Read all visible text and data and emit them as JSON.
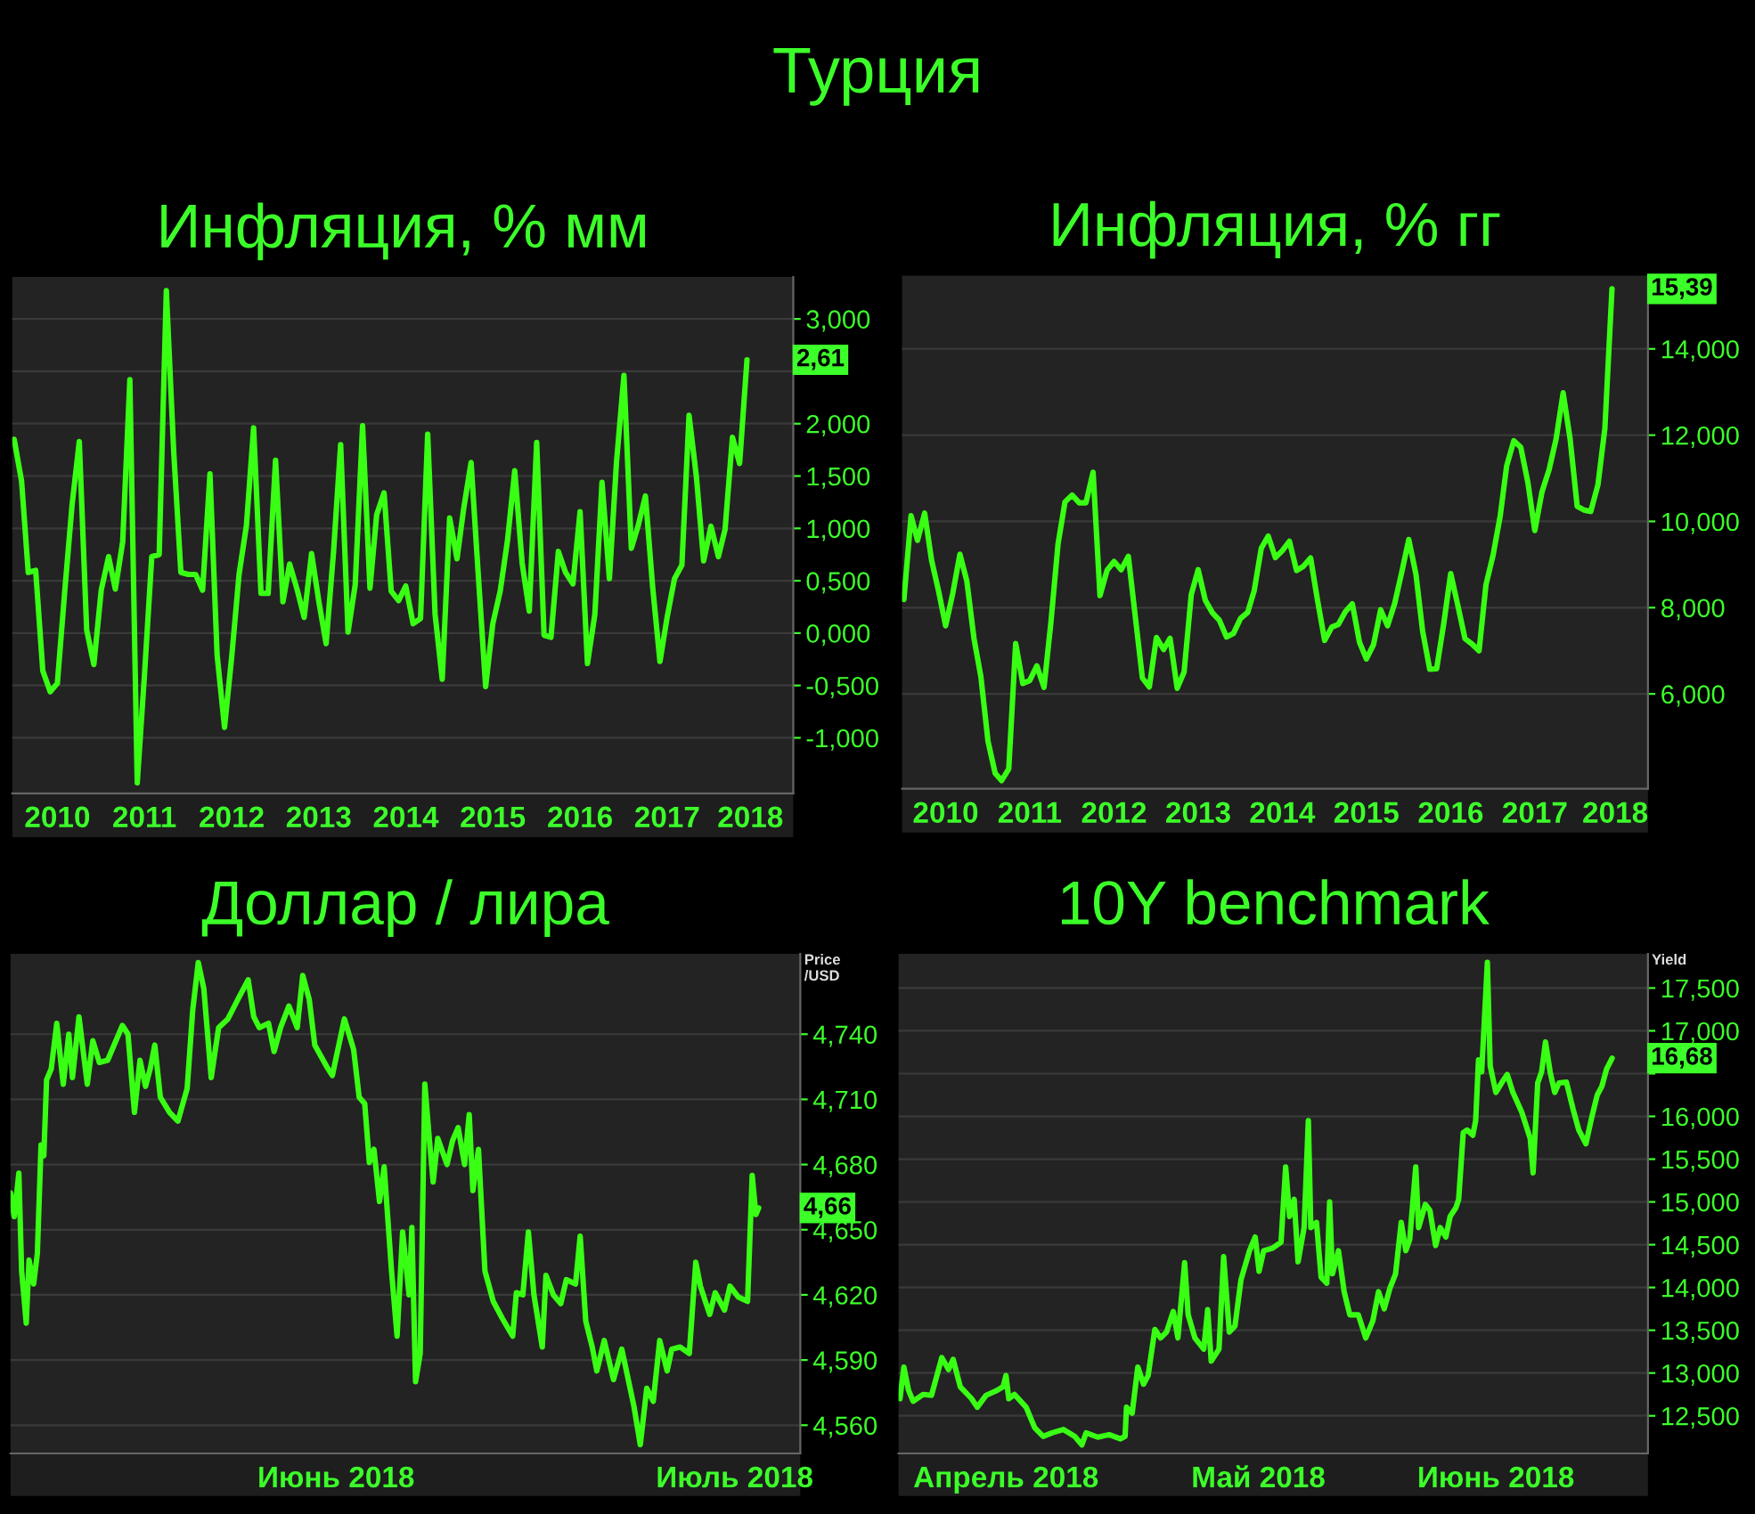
{
  "chart_data": [
    {
      "type": "line",
      "title": "Инфляция, % мм",
      "annotations": [
        "Турция",
        {
          "text": "2,61",
          "x": "2018-06",
          "y": 2.61
        }
      ],
      "x": [
        "2010-01",
        "2010-02",
        "2010-03",
        "2010-04",
        "2010-05",
        "2010-06",
        "2010-07",
        "2010-08",
        "2010-09",
        "2010-10",
        "2010-11",
        "2010-12",
        "2011-01",
        "2011-02",
        "2011-03",
        "2011-04",
        "2011-05",
        "2011-06",
        "2011-07",
        "2011-08",
        "2011-09",
        "2011-10",
        "2011-11",
        "2011-12",
        "2012-01",
        "2012-02",
        "2012-03",
        "2012-04",
        "2012-05",
        "2012-06",
        "2012-07",
        "2012-08",
        "2012-09",
        "2012-10",
        "2012-11",
        "2012-12",
        "2013-01",
        "2013-02",
        "2013-03",
        "2013-04",
        "2013-05",
        "2013-06",
        "2013-07",
        "2013-08",
        "2013-09",
        "2013-10",
        "2013-11",
        "2013-12",
        "2014-01",
        "2014-02",
        "2014-03",
        "2014-04",
        "2014-05",
        "2014-06",
        "2014-07",
        "2014-08",
        "2014-09",
        "2014-10",
        "2014-11",
        "2014-12",
        "2015-01",
        "2015-02",
        "2015-03",
        "2015-04",
        "2015-05",
        "2015-06",
        "2015-07",
        "2015-08",
        "2015-09",
        "2015-10",
        "2015-11",
        "2015-12",
        "2016-01",
        "2016-02",
        "2016-03",
        "2016-04",
        "2016-05",
        "2016-06",
        "2016-07",
        "2016-08",
        "2016-09",
        "2016-10",
        "2016-11",
        "2016-12",
        "2017-01",
        "2017-02",
        "2017-03",
        "2017-04",
        "2017-05",
        "2017-06",
        "2017-07",
        "2017-08",
        "2017-09",
        "2017-10",
        "2017-11",
        "2017-12",
        "2018-01",
        "2018-02",
        "2018-03",
        "2018-04",
        "2018-05",
        "2018-06"
      ],
      "series": [
        {
          "color": "#39ff14",
          "values": [
            1.85,
            1.45,
            0.58,
            0.6,
            -0.36,
            -0.56,
            -0.48,
            0.4,
            1.23,
            1.83,
            0.03,
            -0.3,
            0.41,
            0.73,
            0.42,
            0.87,
            2.42,
            -1.43,
            -0.41,
            0.73,
            0.75,
            3.27,
            1.73,
            0.58,
            0.56,
            0.56,
            0.41,
            1.52,
            -0.21,
            -0.9,
            -0.23,
            0.56,
            1.03,
            1.96,
            0.38,
            0.38,
            1.65,
            0.3,
            0.66,
            0.42,
            0.15,
            0.76,
            0.31,
            -0.1,
            0.77,
            1.8,
            0.01,
            0.46,
            1.98,
            0.43,
            1.13,
            1.34,
            0.4,
            0.31,
            0.45,
            0.09,
            0.14,
            1.9,
            0.18,
            -0.44,
            1.1,
            0.71,
            1.19,
            1.63,
            0.56,
            -0.51,
            0.09,
            0.4,
            0.89,
            1.55,
            0.67,
            0.21,
            1.82,
            -0.02,
            -0.04,
            0.78,
            0.58,
            0.47,
            1.16,
            -0.29,
            0.18,
            1.44,
            0.52,
            1.64,
            2.46,
            0.81,
            1.02,
            1.31,
            0.45,
            -0.27,
            0.15,
            0.52,
            0.65,
            2.08,
            1.49,
            0.69,
            1.02,
            0.73,
            0.99,
            1.87,
            1.62,
            2.61
          ]
        }
      ],
      "xlim": [
        "2009-12-24",
        "2018-12-12"
      ],
      "xticks": [
        {
          "value": "2010-07-01",
          "label": "2010"
        },
        {
          "value": "2011-07-01",
          "label": "2011"
        },
        {
          "value": "2012-07-01",
          "label": "2012"
        },
        {
          "value": "2013-07-01",
          "label": "2013"
        },
        {
          "value": "2014-07-01",
          "label": "2014"
        },
        {
          "value": "2015-07-01",
          "label": "2015"
        },
        {
          "value": "2016-07-01",
          "label": "2016"
        },
        {
          "value": "2017-07-01",
          "label": "2017"
        },
        {
          "value": "2018-06-15",
          "label": "2018"
        }
      ],
      "ylim": [
        -1.53,
        3.4
      ],
      "yticks": [
        {
          "value": -1,
          "label": "-1,000"
        },
        {
          "value": -0.5,
          "label": "-0,500"
        },
        {
          "value": 0,
          "label": "0,000"
        },
        {
          "value": 0.5,
          "label": "0,500"
        },
        {
          "value": 1,
          "label": "1,000"
        },
        {
          "value": 1.5,
          "label": "1,500"
        },
        {
          "value": 2,
          "label": "2,000"
        },
        {
          "value": 2.5,
          "label": null
        },
        {
          "value": 3,
          "label": "3,000"
        }
      ],
      "grid": "y"
    },
    {
      "type": "line",
      "title": "Инфляция, % гг",
      "annotations": [
        {
          "text": "15,39",
          "x": "2018-06",
          "y": 15.39
        }
      ],
      "x": [
        "2010-01",
        "2010-02",
        "2010-03",
        "2010-04",
        "2010-05",
        "2010-06",
        "2010-07",
        "2010-08",
        "2010-09",
        "2010-10",
        "2010-11",
        "2010-12",
        "2011-01",
        "2011-02",
        "2011-03",
        "2011-04",
        "2011-05",
        "2011-06",
        "2011-07",
        "2011-08",
        "2011-09",
        "2011-10",
        "2011-11",
        "2011-12",
        "2012-01",
        "2012-02",
        "2012-03",
        "2012-04",
        "2012-05",
        "2012-06",
        "2012-07",
        "2012-08",
        "2012-09",
        "2012-10",
        "2012-11",
        "2012-12",
        "2013-01",
        "2013-02",
        "2013-03",
        "2013-04",
        "2013-05",
        "2013-06",
        "2013-07",
        "2013-08",
        "2013-09",
        "2013-10",
        "2013-11",
        "2013-12",
        "2014-01",
        "2014-02",
        "2014-03",
        "2014-04",
        "2014-05",
        "2014-06",
        "2014-07",
        "2014-08",
        "2014-09",
        "2014-10",
        "2014-11",
        "2014-12",
        "2015-01",
        "2015-02",
        "2015-03",
        "2015-04",
        "2015-05",
        "2015-06",
        "2015-07",
        "2015-08",
        "2015-09",
        "2015-10",
        "2015-11",
        "2015-12",
        "2016-01",
        "2016-02",
        "2016-03",
        "2016-04",
        "2016-05",
        "2016-06",
        "2016-07",
        "2016-08",
        "2016-09",
        "2016-10",
        "2016-11",
        "2016-12",
        "2017-01",
        "2017-02",
        "2017-03",
        "2017-04",
        "2017-05",
        "2017-06",
        "2017-07",
        "2017-08",
        "2017-09",
        "2017-10",
        "2017-11",
        "2017-12",
        "2018-01",
        "2018-02",
        "2018-03",
        "2018-04",
        "2018-05",
        "2018-06"
      ],
      "series": [
        {
          "color": "#39ff14",
          "values": [
            8.19,
            10.13,
            9.56,
            10.19,
            9.1,
            8.37,
            7.58,
            8.33,
            9.24,
            8.62,
            7.29,
            6.4,
            4.9,
            4.16,
            3.99,
            4.26,
            7.17,
            6.24,
            6.31,
            6.65,
            6.15,
            7.66,
            9.48,
            10.45,
            10.61,
            10.43,
            10.43,
            11.14,
            8.28,
            8.87,
            9.07,
            8.88,
            9.19,
            7.8,
            6.37,
            6.16,
            7.31,
            7.03,
            7.29,
            6.13,
            6.51,
            8.3,
            8.88,
            8.17,
            7.88,
            7.71,
            7.32,
            7.4,
            7.75,
            7.89,
            8.39,
            9.38,
            9.66,
            9.16,
            9.32,
            9.54,
            8.86,
            8.96,
            9.15,
            8.17,
            7.24,
            7.55,
            7.61,
            7.91,
            8.09,
            7.2,
            6.81,
            7.14,
            7.95,
            7.58,
            8.1,
            8.81,
            9.58,
            8.78,
            7.46,
            6.57,
            6.58,
            7.64,
            8.79,
            8.05,
            7.28,
            7.16,
            7.0,
            8.53,
            9.22,
            10.13,
            11.29,
            11.87,
            11.72,
            10.9,
            9.79,
            10.68,
            11.2,
            11.9,
            12.98,
            11.92,
            10.35,
            10.26,
            10.23,
            10.85,
            12.15,
            15.39
          ]
        }
      ],
      "xlim": [
        "2009-12-24",
        "2018-11-04"
      ],
      "xticks": [
        {
          "value": "2010-07-01",
          "label": "2010"
        },
        {
          "value": "2011-07-01",
          "label": "2011"
        },
        {
          "value": "2012-07-01",
          "label": "2012"
        },
        {
          "value": "2013-07-01",
          "label": "2013"
        },
        {
          "value": "2014-07-01",
          "label": "2014"
        },
        {
          "value": "2015-07-01",
          "label": "2015"
        },
        {
          "value": "2016-07-01",
          "label": "2016"
        },
        {
          "value": "2017-07-01",
          "label": "2017"
        },
        {
          "value": "2018-06-15",
          "label": "2018"
        }
      ],
      "ylim": [
        3.8,
        15.7
      ],
      "yticks": [
        {
          "value": 6,
          "label": "6,000"
        },
        {
          "value": 8,
          "label": "8,000"
        },
        {
          "value": 10,
          "label": "10,000"
        },
        {
          "value": 12,
          "label": "12,000"
        },
        {
          "value": 14,
          "label": "14,000"
        }
      ],
      "grid": "y"
    },
    {
      "type": "line",
      "title": "Доллар / лира",
      "ylabel": "Price\n/USD",
      "annotations": [
        {
          "text": "4,66",
          "x": "2018-07-05T01:00",
          "y": 4.66
        }
      ],
      "x": [
        "2018-06-01T08:00",
        "2018-06-01T12:00",
        "2018-06-01T17:00",
        "2018-06-01T20:00",
        "2018-06-02T01:00",
        "2018-06-02T04:00",
        "2018-06-02T09:00",
        "2018-06-02T13:00",
        "2018-06-02T17:00",
        "2018-06-02T20:00",
        "2018-06-02T23:00",
        "2018-06-03T04:00",
        "2018-06-03T10:00",
        "2018-06-03T17:00",
        "2018-06-03T23:00",
        "2018-06-04T03:00",
        "2018-06-04T10:00",
        "2018-06-04T19:00",
        "2018-06-05T01:00",
        "2018-06-05T08:00",
        "2018-06-05T17:00",
        "2018-06-06T09:00",
        "2018-06-06T15:00",
        "2018-06-06T22:00",
        "2018-06-07T04:00",
        "2018-06-07T10:00",
        "2018-06-07T15:00",
        "2018-06-07T20:00",
        "2018-06-08T02:00",
        "2018-06-08T12:00",
        "2018-06-08T21:00",
        "2018-06-09T07:00",
        "2018-06-09T13:00",
        "2018-06-09T19:00",
        "2018-06-10T01:00",
        "2018-06-10T09:00",
        "2018-06-10T17:00",
        "2018-06-11T03:00",
        "2018-06-11T15:00",
        "2018-06-12T01:00",
        "2018-06-12T07:00",
        "2018-06-12T13:00",
        "2018-06-12T23:00",
        "2018-06-13T05:00",
        "2018-06-13T12:00",
        "2018-06-13T21:00",
        "2018-06-14T06:00",
        "2018-06-14T12:00",
        "2018-06-14T19:00",
        "2018-06-15T01:00",
        "2018-06-15T14:00",
        "2018-06-15T20:00",
        "2018-06-16T09:00",
        "2018-06-16T19:00",
        "2018-06-17T01:00",
        "2018-06-17T07:00",
        "2018-06-17T12:00",
        "2018-06-17T17:00",
        "2018-06-17T23:00",
        "2018-06-18T04:00",
        "2018-06-18T12:00",
        "2018-06-18T18:00",
        "2018-06-19T00:00",
        "2018-06-19T07:00",
        "2018-06-19T10:00",
        "2018-06-19T14:00",
        "2018-06-19T19:00",
        "2018-06-20T00:00",
        "2018-06-20T05:00",
        "2018-06-20T09:00",
        "2018-06-20T14:00",
        "2018-06-21T00:00",
        "2018-06-21T06:00",
        "2018-06-21T12:00",
        "2018-06-21T19:00",
        "2018-06-22T00:00",
        "2018-06-22T04:00",
        "2018-06-22T10:00",
        "2018-06-22T17:00",
        "2018-06-23T02:00",
        "2018-06-23T12:00",
        "2018-06-23T23:00",
        "2018-06-24T03:00",
        "2018-06-24T10:00",
        "2018-06-24T16:00",
        "2018-06-24T22:00",
        "2018-06-25T07:00",
        "2018-06-25T11:00",
        "2018-06-25T19:00",
        "2018-06-26T03:00",
        "2018-06-26T09:00",
        "2018-06-26T19:00",
        "2018-06-27T00:00",
        "2018-06-27T06:00",
        "2018-06-27T13:00",
        "2018-06-27T18:00",
        "2018-06-28T02:00",
        "2018-06-28T12:00",
        "2018-06-28T21:00",
        "2018-06-29T10:00",
        "2018-06-29T17:00",
        "2018-06-30T00:00",
        "2018-06-30T07:00",
        "2018-06-30T14:00",
        "2018-06-30T22:00",
        "2018-07-01T03:00",
        "2018-07-01T12:00",
        "2018-07-01T22:00",
        "2018-07-02T05:00",
        "2018-07-02T10:00",
        "2018-07-02T20:00",
        "2018-07-03T02:00",
        "2018-07-03T12:00",
        "2018-07-03T18:00",
        "2018-07-04T03:00",
        "2018-07-04T13:00",
        "2018-07-04T18:00",
        "2018-07-04T22:00",
        "2018-07-05T01:00"
      ],
      "series": [
        {
          "color": "#39ff14",
          "values": [
            4.667,
            4.656,
            4.676,
            4.631,
            4.607,
            4.636,
            4.625,
            4.639,
            4.689,
            4.684,
            4.719,
            4.724,
            4.745,
            4.717,
            4.74,
            4.72,
            4.748,
            4.717,
            4.737,
            4.727,
            4.728,
            4.744,
            4.74,
            4.704,
            4.728,
            4.716,
            4.724,
            4.735,
            4.711,
            4.704,
            4.7,
            4.715,
            4.751,
            4.773,
            4.761,
            4.72,
            4.743,
            4.747,
            4.757,
            4.765,
            4.748,
            4.743,
            4.745,
            4.732,
            4.743,
            4.753,
            4.743,
            4.767,
            4.756,
            4.735,
            4.725,
            4.721,
            4.747,
            4.733,
            4.711,
            4.708,
            4.681,
            4.687,
            4.663,
            4.679,
            4.631,
            4.601,
            4.649,
            4.62,
            4.651,
            4.58,
            4.593,
            4.717,
            4.691,
            4.672,
            4.692,
            4.68,
            4.691,
            4.697,
            4.68,
            4.703,
            4.668,
            4.687,
            4.631,
            4.617,
            4.609,
            4.601,
            4.621,
            4.62,
            4.649,
            4.62,
            4.596,
            4.629,
            4.62,
            4.616,
            4.627,
            4.625,
            4.647,
            4.608,
            4.596,
            4.585,
            4.599,
            4.581,
            4.595,
            4.569,
            4.551,
            4.577,
            4.571,
            4.599,
            4.585,
            4.595,
            4.596,
            4.593,
            4.635,
            4.624,
            4.611,
            4.621,
            4.613,
            4.624,
            4.619,
            4.617,
            4.675,
            4.657,
            4.66
          ]
        }
      ],
      "xlim": [
        "2018-06-01T08:00",
        "2018-07-06T22:00"
      ],
      "xticks": [
        {
          "value": "2018-06-16",
          "label": "Июнь 2018"
        },
        {
          "value": "2018-07-03T23:00",
          "label": "Июль 2018"
        }
      ],
      "ylim": [
        4.547,
        4.777
      ],
      "yticks": [
        {
          "value": 4.56,
          "label": "4,560"
        },
        {
          "value": 4.59,
          "label": "4,590"
        },
        {
          "value": 4.62,
          "label": "4,620"
        },
        {
          "value": 4.65,
          "label": "4,650"
        },
        {
          "value": 4.68,
          "label": "4,680"
        },
        {
          "value": 4.71,
          "label": "4,710"
        },
        {
          "value": 4.74,
          "label": "4,740"
        }
      ],
      "grid": "y"
    },
    {
      "type": "line",
      "title": "10Y benchmark",
      "ylabel": "Yield",
      "annotations": [
        {
          "text": "16,68",
          "x": "2018-06-27T02:00",
          "y": 16.68
        }
      ],
      "x": [
        "2018-04-04T09:00",
        "2018-04-04T20:00",
        "2018-04-05T09:00",
        "2018-04-05T22:00",
        "2018-04-07T02:00",
        "2018-04-08T02:00",
        "2018-04-09T07:00",
        "2018-04-10T02:00",
        "2018-04-10T15:00",
        "2018-04-11T11:00",
        "2018-04-12T19:00",
        "2018-04-13T11:00",
        "2018-04-14T12:00",
        "2018-04-15T20:00",
        "2018-04-16T12:00",
        "2018-04-16T20:00",
        "2018-04-17T04:00",
        "2018-04-17T20:00",
        "2018-04-19T05:00",
        "2018-04-20T05:00",
        "2018-04-21T05:00",
        "2018-04-22T06:00",
        "2018-04-23T14:00",
        "2018-04-24T22:00",
        "2018-04-25T18:00",
        "2018-04-26T06:00",
        "2018-04-27T15:00",
        "2018-04-28T23:00",
        "2018-04-30T07:00",
        "2018-04-30T20:00",
        "2018-05-01T00:00",
        "2018-05-01T16:00",
        "2018-05-02T08:00",
        "2018-05-03T00:00",
        "2018-05-03T13:00",
        "2018-05-04T08:00",
        "2018-05-05T00:00",
        "2018-05-05T17:00",
        "2018-05-06T12:00",
        "2018-05-07T01:00",
        "2018-05-07T20:00",
        "2018-05-08T06:00",
        "2018-05-09T01:00",
        "2018-05-10T02:00",
        "2018-05-10T13:00",
        "2018-05-10T23:00",
        "2018-05-11T21:00",
        "2018-05-12T10:00",
        "2018-05-13T02:00",
        "2018-05-13T18:00",
        "2018-05-14T11:00",
        "2018-05-15T11:00",
        "2018-05-16T03:00",
        "2018-05-16T14:00",
        "2018-05-17T03:00",
        "2018-05-18T04:00",
        "2018-05-19T04:00",
        "2018-05-19T17:00",
        "2018-05-20T04:00",
        "2018-05-20T17:00",
        "2018-05-21T04:00",
        "2018-05-21T21:00",
        "2018-05-22T09:00",
        "2018-05-22T16:00",
        "2018-05-23T08:00",
        "2018-05-23T21:00",
        "2018-05-24T13:00",
        "2018-05-24T21:00",
        "2018-05-25T05:00",
        "2018-05-25T22:00",
        "2018-05-26T14:00",
        "2018-05-27T06:00",
        "2018-05-28T06:00",
        "2018-05-29T03:00",
        "2018-05-29T23:00",
        "2018-05-30T15:00",
        "2018-05-31T07:00",
        "2018-05-31T23:00",
        "2018-06-01T15:00",
        "2018-06-02T07:00",
        "2018-06-02T20:00",
        "2018-06-03T07:00",
        "2018-06-04T00:00",
        "2018-06-04T08:00",
        "2018-06-05T03:00",
        "2018-06-05T16:00",
        "2018-06-06T08:00",
        "2018-06-06T21:00",
        "2018-06-07T13:00",
        "2018-06-08T01:00",
        "2018-06-08T17:00",
        "2018-06-09T01:00",
        "2018-06-09T14:00",
        "2018-06-10T01:00",
        "2018-06-10T17:00",
        "2018-06-11T01:00",
        "2018-06-11T09:00",
        "2018-06-11T18:00",
        "2018-06-12T02:00",
        "2018-06-12T10:00",
        "2018-06-12T18:00",
        "2018-06-13T10:00",
        "2018-06-14T02:00",
        "2018-06-14T18:00",
        "2018-06-15T10:00",
        "2018-06-16T11:00",
        "2018-06-17T11:00",
        "2018-06-17T19:00",
        "2018-06-18T08:00",
        "2018-06-18T19:00",
        "2018-06-19T06:00",
        "2018-06-19T19:00",
        "2018-06-20T08:00",
        "2018-06-20T20:00",
        "2018-06-21T17:00",
        "2018-06-22T12:00",
        "2018-06-23T04:00",
        "2018-06-24T00:00",
        "2018-06-24T16:00",
        "2018-06-25T08:00",
        "2018-06-25T21:00",
        "2018-06-26T10:00",
        "2018-06-27T02:00"
      ],
      "series": [
        {
          "color": "#39ff14",
          "values": [
            12.7,
            13.07,
            12.8,
            12.67,
            12.75,
            12.74,
            13.18,
            13.04,
            13.16,
            12.84,
            12.7,
            12.6,
            12.74,
            12.8,
            12.84,
            12.97,
            12.7,
            12.75,
            12.6,
            12.36,
            12.26,
            12.3,
            12.34,
            12.26,
            12.16,
            12.3,
            12.25,
            12.28,
            12.23,
            12.26,
            12.6,
            12.53,
            13.07,
            12.87,
            12.97,
            13.51,
            13.41,
            13.48,
            13.72,
            13.41,
            14.29,
            13.68,
            13.41,
            13.28,
            13.74,
            13.14,
            13.28,
            14.36,
            13.48,
            13.55,
            14.09,
            14.43,
            14.59,
            14.19,
            14.43,
            14.46,
            14.53,
            15.41,
            14.83,
            15.03,
            14.3,
            14.7,
            15.95,
            14.7,
            14.76,
            14.12,
            14.05,
            15.0,
            14.16,
            14.43,
            13.95,
            13.68,
            13.68,
            13.41,
            13.61,
            13.95,
            13.75,
            13.99,
            14.16,
            14.76,
            14.43,
            14.56,
            15.41,
            14.7,
            14.97,
            14.9,
            14.49,
            14.7,
            14.59,
            14.83,
            14.93,
            15.03,
            15.81,
            15.84,
            15.78,
            15.95,
            16.66,
            16.52,
            17.16,
            17.8,
            16.59,
            16.28,
            16.39,
            16.49,
            16.28,
            16.05,
            15.74,
            15.34,
            16.39,
            16.52,
            16.87,
            16.52,
            16.28,
            16.39,
            16.4,
            16.08,
            15.84,
            15.68,
            15.98,
            16.25,
            16.35,
            16.55,
            16.68
          ]
        }
      ],
      "xlim": [
        "2018-04-04T05:00",
        "2018-07-01T07:00"
      ],
      "xticks": [
        {
          "value": "2018-04-16T20:00",
          "label": "Апрель 2018"
        },
        {
          "value": "2018-05-16T12:00",
          "label": "Май 2018"
        },
        {
          "value": "2018-06-13T10:00",
          "label": "Июнь 2018"
        }
      ],
      "ylim": [
        12.06,
        17.9
      ],
      "yticks": [
        {
          "value": 12.5,
          "label": "12,500"
        },
        {
          "value": 13,
          "label": "13,000"
        },
        {
          "value": 13.5,
          "label": "13,500"
        },
        {
          "value": 14,
          "label": "14,000"
        },
        {
          "value": 14.5,
          "label": "14,500"
        },
        {
          "value": 15,
          "label": "15,000"
        },
        {
          "value": 15.5,
          "label": "15,500"
        },
        {
          "value": 16,
          "label": "16,000"
        },
        {
          "value": 16.5,
          "label": null
        },
        {
          "value": 17,
          "label": "17,000"
        },
        {
          "value": 17.5,
          "label": "17,500"
        }
      ],
      "grid": "y"
    }
  ]
}
